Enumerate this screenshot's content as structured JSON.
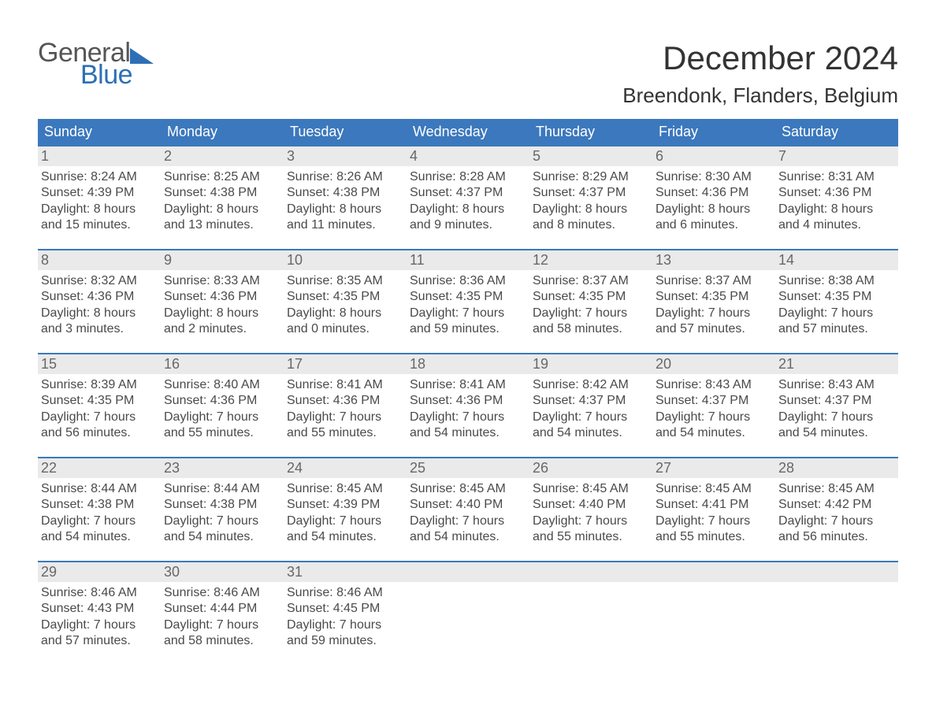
{
  "brand": {
    "general": "General",
    "blue": "Blue"
  },
  "title": "December 2024",
  "location": "Breendonk, Flanders, Belgium",
  "colors": {
    "header_bg": "#3b78bd",
    "header_text": "#ffffff",
    "week_border": "#3b78bd",
    "daynum_bg": "#eaeaea",
    "daynum_text": "#676767",
    "body_text": "#4a4a4a",
    "page_bg": "#ffffff",
    "logo_gray": "#555555",
    "logo_blue": "#2d6fb5"
  },
  "typography": {
    "title_fontsize": 42,
    "location_fontsize": 26,
    "dow_fontsize": 18,
    "daynum_fontsize": 18,
    "body_fontsize": 16
  },
  "days_of_week": [
    "Sunday",
    "Monday",
    "Tuesday",
    "Wednesday",
    "Thursday",
    "Friday",
    "Saturday"
  ],
  "weeks": [
    [
      {
        "num": "1",
        "sunrise": "Sunrise: 8:24 AM",
        "sunset": "Sunset: 4:39 PM",
        "dl1": "Daylight: 8 hours",
        "dl2": "and 15 minutes."
      },
      {
        "num": "2",
        "sunrise": "Sunrise: 8:25 AM",
        "sunset": "Sunset: 4:38 PM",
        "dl1": "Daylight: 8 hours",
        "dl2": "and 13 minutes."
      },
      {
        "num": "3",
        "sunrise": "Sunrise: 8:26 AM",
        "sunset": "Sunset: 4:38 PM",
        "dl1": "Daylight: 8 hours",
        "dl2": "and 11 minutes."
      },
      {
        "num": "4",
        "sunrise": "Sunrise: 8:28 AM",
        "sunset": "Sunset: 4:37 PM",
        "dl1": "Daylight: 8 hours",
        "dl2": "and 9 minutes."
      },
      {
        "num": "5",
        "sunrise": "Sunrise: 8:29 AM",
        "sunset": "Sunset: 4:37 PM",
        "dl1": "Daylight: 8 hours",
        "dl2": "and 8 minutes."
      },
      {
        "num": "6",
        "sunrise": "Sunrise: 8:30 AM",
        "sunset": "Sunset: 4:36 PM",
        "dl1": "Daylight: 8 hours",
        "dl2": "and 6 minutes."
      },
      {
        "num": "7",
        "sunrise": "Sunrise: 8:31 AM",
        "sunset": "Sunset: 4:36 PM",
        "dl1": "Daylight: 8 hours",
        "dl2": "and 4 minutes."
      }
    ],
    [
      {
        "num": "8",
        "sunrise": "Sunrise: 8:32 AM",
        "sunset": "Sunset: 4:36 PM",
        "dl1": "Daylight: 8 hours",
        "dl2": "and 3 minutes."
      },
      {
        "num": "9",
        "sunrise": "Sunrise: 8:33 AM",
        "sunset": "Sunset: 4:36 PM",
        "dl1": "Daylight: 8 hours",
        "dl2": "and 2 minutes."
      },
      {
        "num": "10",
        "sunrise": "Sunrise: 8:35 AM",
        "sunset": "Sunset: 4:35 PM",
        "dl1": "Daylight: 8 hours",
        "dl2": "and 0 minutes."
      },
      {
        "num": "11",
        "sunrise": "Sunrise: 8:36 AM",
        "sunset": "Sunset: 4:35 PM",
        "dl1": "Daylight: 7 hours",
        "dl2": "and 59 minutes."
      },
      {
        "num": "12",
        "sunrise": "Sunrise: 8:37 AM",
        "sunset": "Sunset: 4:35 PM",
        "dl1": "Daylight: 7 hours",
        "dl2": "and 58 minutes."
      },
      {
        "num": "13",
        "sunrise": "Sunrise: 8:37 AM",
        "sunset": "Sunset: 4:35 PM",
        "dl1": "Daylight: 7 hours",
        "dl2": "and 57 minutes."
      },
      {
        "num": "14",
        "sunrise": "Sunrise: 8:38 AM",
        "sunset": "Sunset: 4:35 PM",
        "dl1": "Daylight: 7 hours",
        "dl2": "and 57 minutes."
      }
    ],
    [
      {
        "num": "15",
        "sunrise": "Sunrise: 8:39 AM",
        "sunset": "Sunset: 4:35 PM",
        "dl1": "Daylight: 7 hours",
        "dl2": "and 56 minutes."
      },
      {
        "num": "16",
        "sunrise": "Sunrise: 8:40 AM",
        "sunset": "Sunset: 4:36 PM",
        "dl1": "Daylight: 7 hours",
        "dl2": "and 55 minutes."
      },
      {
        "num": "17",
        "sunrise": "Sunrise: 8:41 AM",
        "sunset": "Sunset: 4:36 PM",
        "dl1": "Daylight: 7 hours",
        "dl2": "and 55 minutes."
      },
      {
        "num": "18",
        "sunrise": "Sunrise: 8:41 AM",
        "sunset": "Sunset: 4:36 PM",
        "dl1": "Daylight: 7 hours",
        "dl2": "and 54 minutes."
      },
      {
        "num": "19",
        "sunrise": "Sunrise: 8:42 AM",
        "sunset": "Sunset: 4:37 PM",
        "dl1": "Daylight: 7 hours",
        "dl2": "and 54 minutes."
      },
      {
        "num": "20",
        "sunrise": "Sunrise: 8:43 AM",
        "sunset": "Sunset: 4:37 PM",
        "dl1": "Daylight: 7 hours",
        "dl2": "and 54 minutes."
      },
      {
        "num": "21",
        "sunrise": "Sunrise: 8:43 AM",
        "sunset": "Sunset: 4:37 PM",
        "dl1": "Daylight: 7 hours",
        "dl2": "and 54 minutes."
      }
    ],
    [
      {
        "num": "22",
        "sunrise": "Sunrise: 8:44 AM",
        "sunset": "Sunset: 4:38 PM",
        "dl1": "Daylight: 7 hours",
        "dl2": "and 54 minutes."
      },
      {
        "num": "23",
        "sunrise": "Sunrise: 8:44 AM",
        "sunset": "Sunset: 4:38 PM",
        "dl1": "Daylight: 7 hours",
        "dl2": "and 54 minutes."
      },
      {
        "num": "24",
        "sunrise": "Sunrise: 8:45 AM",
        "sunset": "Sunset: 4:39 PM",
        "dl1": "Daylight: 7 hours",
        "dl2": "and 54 minutes."
      },
      {
        "num": "25",
        "sunrise": "Sunrise: 8:45 AM",
        "sunset": "Sunset: 4:40 PM",
        "dl1": "Daylight: 7 hours",
        "dl2": "and 54 minutes."
      },
      {
        "num": "26",
        "sunrise": "Sunrise: 8:45 AM",
        "sunset": "Sunset: 4:40 PM",
        "dl1": "Daylight: 7 hours",
        "dl2": "and 55 minutes."
      },
      {
        "num": "27",
        "sunrise": "Sunrise: 8:45 AM",
        "sunset": "Sunset: 4:41 PM",
        "dl1": "Daylight: 7 hours",
        "dl2": "and 55 minutes."
      },
      {
        "num": "28",
        "sunrise": "Sunrise: 8:45 AM",
        "sunset": "Sunset: 4:42 PM",
        "dl1": "Daylight: 7 hours",
        "dl2": "and 56 minutes."
      }
    ],
    [
      {
        "num": "29",
        "sunrise": "Sunrise: 8:46 AM",
        "sunset": "Sunset: 4:43 PM",
        "dl1": "Daylight: 7 hours",
        "dl2": "and 57 minutes."
      },
      {
        "num": "30",
        "sunrise": "Sunrise: 8:46 AM",
        "sunset": "Sunset: 4:44 PM",
        "dl1": "Daylight: 7 hours",
        "dl2": "and 58 minutes."
      },
      {
        "num": "31",
        "sunrise": "Sunrise: 8:46 AM",
        "sunset": "Sunset: 4:45 PM",
        "dl1": "Daylight: 7 hours",
        "dl2": "and 59 minutes."
      },
      {
        "num": "",
        "empty": true
      },
      {
        "num": "",
        "empty": true
      },
      {
        "num": "",
        "empty": true
      },
      {
        "num": "",
        "empty": true
      }
    ]
  ]
}
